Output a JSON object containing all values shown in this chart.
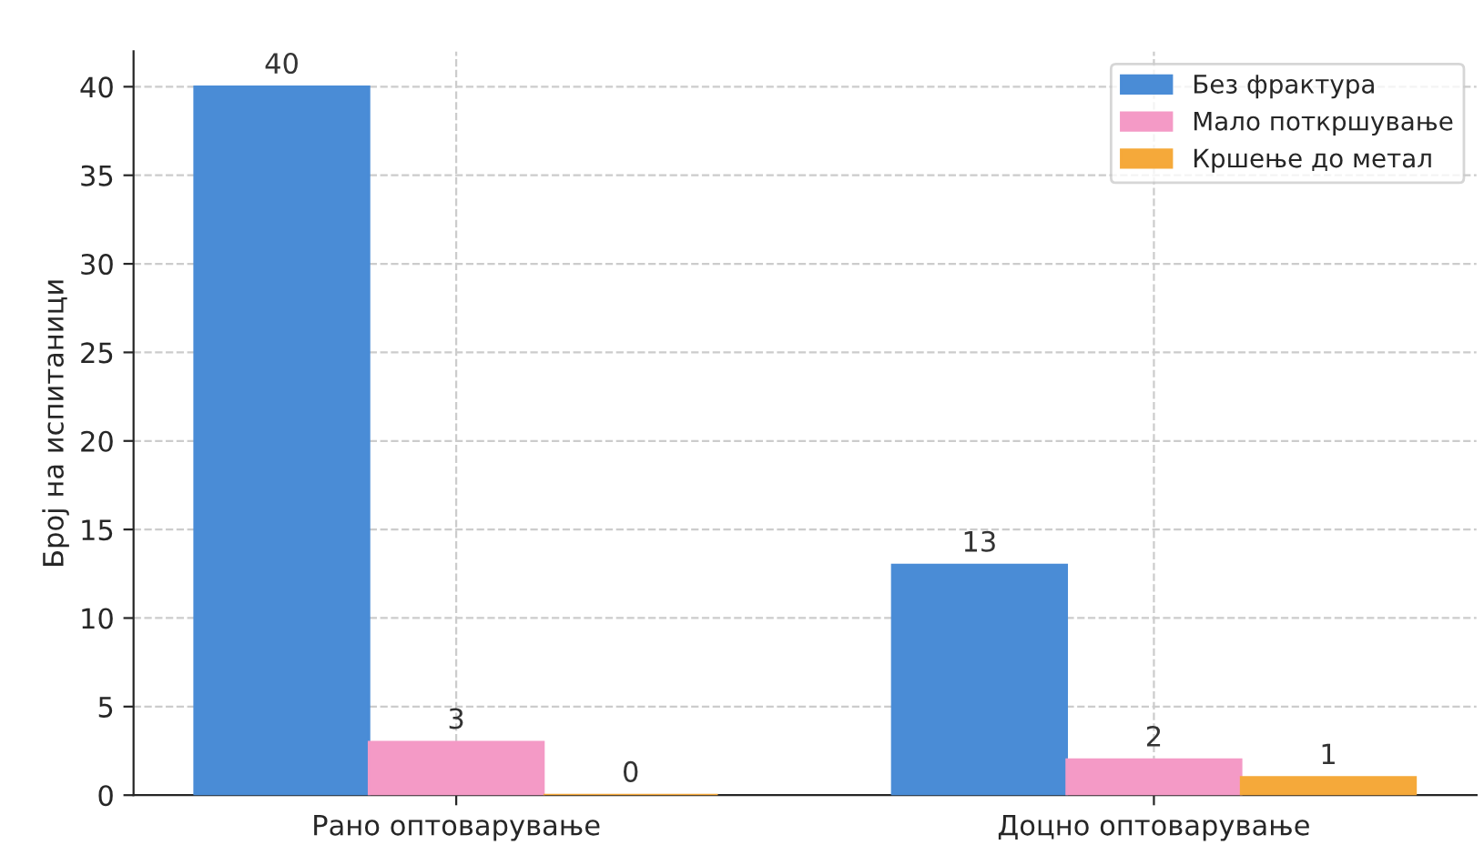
{
  "chart_data": {
    "type": "bar",
    "categories": [
      "Рано оптоварување",
      "Доцно оптоварување"
    ],
    "ylabel": "Број на испитаници",
    "series": [
      {
        "name": "Без фрактура",
        "color": "#4a8cd6",
        "values": [
          40,
          13
        ]
      },
      {
        "name": "Мало поткршување",
        "color": "#f49ac6",
        "values": [
          3,
          2
        ]
      },
      {
        "name": "Кршење до метал",
        "color": "#f5a93a",
        "values": [
          0,
          1
        ]
      }
    ],
    "ylim": [
      0,
      42
    ],
    "yticks": [
      0,
      5,
      10,
      15,
      20,
      25,
      30,
      35,
      40
    ],
    "grid": true,
    "legend": "top right",
    "data_labels": true
  }
}
